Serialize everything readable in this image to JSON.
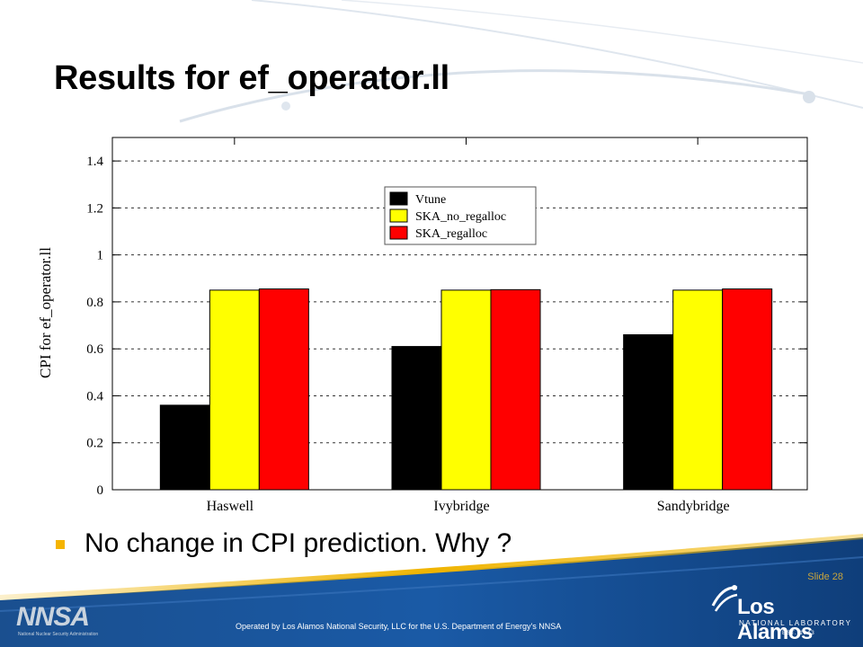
{
  "slide": {
    "title": "Results for ef_operator.ll",
    "bullet": "No change in CPI prediction.  Why ?",
    "slide_number": "Slide 28",
    "footer": "Operated by Los Alamos National Security, LLC for the U.S. Department of Energy's NNSA",
    "logo_left": "NNSA",
    "logo_left_sub": "National Nuclear Security Administration",
    "logo_right_name": "Los Alamos",
    "logo_right_lab": "NATIONAL LABORATORY",
    "logo_right_est": "EST. 1943"
  },
  "colors": {
    "bullet": "#f5b400",
    "footer_blue": "#1a5aa6",
    "footer_gold": "#f0b400"
  },
  "chart_data": {
    "type": "bar",
    "title": "",
    "xlabel": "",
    "ylabel": "CPI for ef_operator.ll",
    "categories": [
      "Haswell",
      "Ivybridge",
      "Sandybridge"
    ],
    "series": [
      {
        "name": "Vtune",
        "color": "#000000",
        "values": [
          0.36,
          0.61,
          0.66
        ]
      },
      {
        "name": "SKA_no_regalloc",
        "color": "#ffff00",
        "values": [
          0.85,
          0.85,
          0.85
        ]
      },
      {
        "name": "SKA_regalloc",
        "color": "#ff0000",
        "values": [
          0.855,
          0.852,
          0.855
        ]
      }
    ],
    "ylim": [
      0,
      1.5
    ],
    "yticks": [
      "0",
      "0.2",
      "0.4",
      "0.6",
      "0.8",
      "1",
      "1.2",
      "1.4"
    ],
    "grid": true,
    "legend_position": "top-center"
  }
}
